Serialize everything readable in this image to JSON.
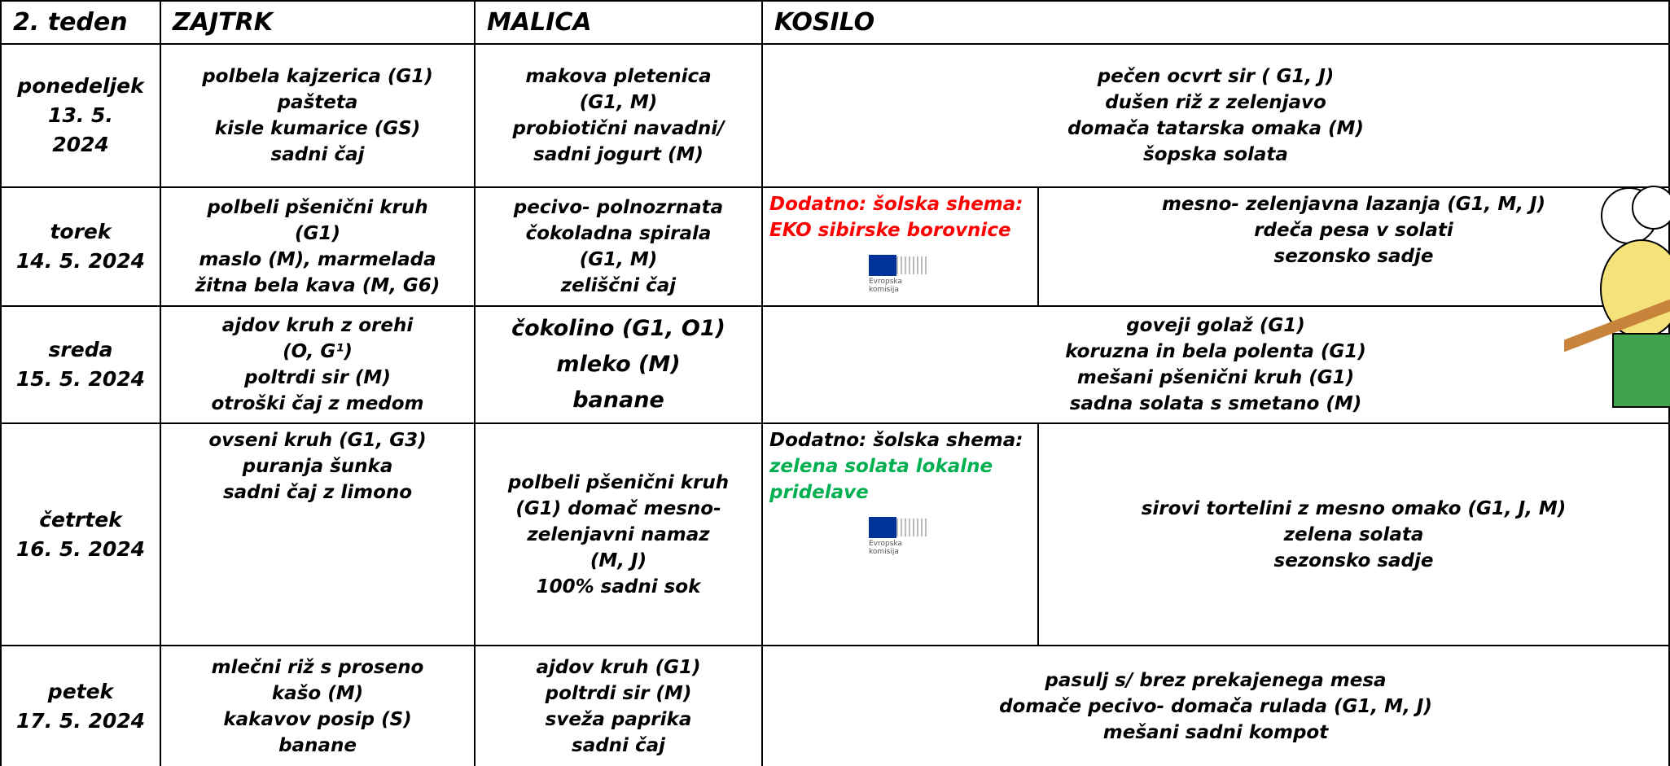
{
  "header": {
    "week": "2. teden",
    "zajtrk": "ZAJTRK",
    "malica": "MALICA",
    "kosilo": "KOSILO"
  },
  "rows": [
    {
      "day": [
        "ponedeljek",
        "13. 5.",
        "2024"
      ],
      "zajtrk": [
        "polbela kajzerica (G1)",
        "pašteta",
        "kisle kumarice (GS)",
        "sadni čaj"
      ],
      "malica": [
        "makova pletenica",
        "(G1, M)",
        "probiotični navadni/",
        "sadni jogurt (M)"
      ],
      "kosilo": [
        "pečen ocvrt sir ( G1, J)",
        "dušen riž z zelenjavo",
        "domača tatarska omaka (M)",
        "šopska solata"
      ]
    },
    {
      "day": [
        "torek",
        "14. 5. 2024"
      ],
      "zajtrk": [
        "polbeli pšenični kruh",
        "(G1)",
        "maslo (M), marmelada",
        "žitna bela kava (M, G6)"
      ],
      "malica": [
        "pecivo- polnozrnata",
        "čokoladna spirala",
        "(G1, M)",
        "zeliščni čaj"
      ],
      "dodatno": {
        "label": "Dodatno: šolska shema:",
        "label_color": "#ff0000",
        "item": "EKO sibirske borovnice",
        "item_color": "#ff0000",
        "logo": [
          "Evropska",
          "komisija"
        ]
      },
      "kosilo": [
        "mesno- zelenjavna lazanja (G1, M, J)",
        "rdeča pesa v solati",
        "sezonsko sadje"
      ]
    },
    {
      "day": [
        "sreda",
        "15. 5. 2024"
      ],
      "zajtrk": [
        "ajdov kruh z orehi",
        "(O, G¹)",
        "poltrdi sir (M)",
        "otroški čaj z medom"
      ],
      "malica": [
        "čokolino (G1, O1)",
        "mleko (M)",
        "banane"
      ],
      "kosilo": [
        "goveji  golaž (G1)",
        "koruzna in  bela polenta (G1)",
        "mešani pšenični kruh (G1)",
        "sadna solata s smetano (M)"
      ]
    },
    {
      "day": [
        "četrtek",
        "16. 5. 2024"
      ],
      "zajtrk": [
        "ovseni kruh  (G1, G3)",
        "puranja šunka",
        "sadni čaj z limono"
      ],
      "malica": [
        "polbeli pšenični kruh",
        "(G1) domač mesno-",
        "zelenjavni namaz",
        "(M, J)",
        "100% sadni sok"
      ],
      "dodatno": {
        "label": "Dodatno: šolska shema:",
        "label_color": "#000000",
        "item": "zelena solata lokalne pridelave",
        "item_color": "#00b050",
        "logo": [
          "Evropska",
          "komisija"
        ]
      },
      "kosilo": [
        "sirovi tortelini z mesno omako (G1, J, M)",
        "zelena solata",
        "sezonsko sadje"
      ]
    },
    {
      "day": [
        "petek",
        "17. 5. 2024"
      ],
      "zajtrk": [
        "mlečni riž s proseno",
        "kašo (M)",
        "kakavov posip (S)",
        "banane"
      ],
      "malica": [
        "ajdov kruh (G1)",
        "poltrdi sir (M)",
        "sveža paprika",
        "sadni čaj"
      ],
      "kosilo": [
        "pasulj s/ brez prekajenega mesa",
        "domače pecivo- domača rulada (G1, M, J)",
        "mešani sadni kompot"
      ]
    }
  ]
}
